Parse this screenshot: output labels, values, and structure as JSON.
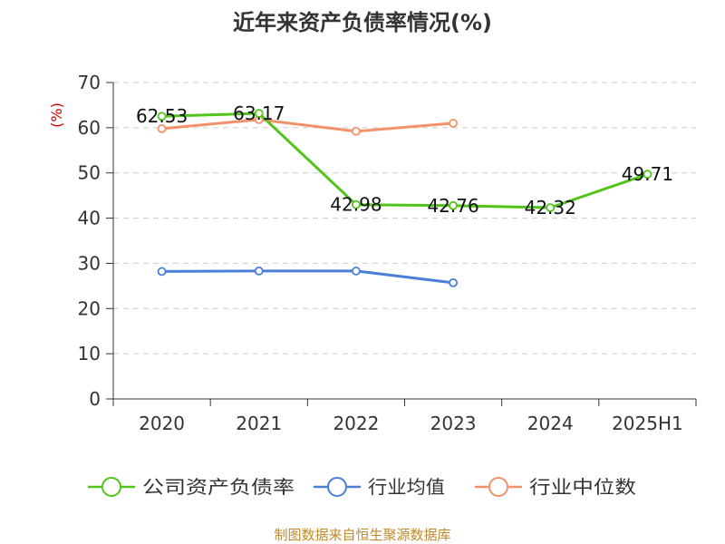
{
  "chart_data": {
    "type": "line",
    "title": "近年来资产负债率情况(%)",
    "ylabel": "(%)",
    "xlabel": "",
    "categories": [
      "2020",
      "2021",
      "2022",
      "2023",
      "2024",
      "2025H1"
    ],
    "ylim": [
      0,
      70
    ],
    "yticks": [
      0,
      10,
      20,
      30,
      40,
      50,
      60,
      70
    ],
    "grid": true,
    "legend_position": "bottom",
    "series": [
      {
        "name": "公司资产负债率",
        "color": "#52c41a",
        "values": [
          62.53,
          63.17,
          42.98,
          42.76,
          42.32,
          49.71
        ],
        "labels": [
          "62.53",
          "63.17",
          "42.98",
          "42.76",
          "42.32",
          "49.71"
        ]
      },
      {
        "name": "行业均值",
        "color": "#4a7fd8",
        "values": [
          28.2,
          28.3,
          28.3,
          25.7,
          null,
          null
        ]
      },
      {
        "name": "行业中位数",
        "color": "#f4916a",
        "values": [
          59.8,
          61.8,
          59.2,
          61.0,
          null,
          null
        ]
      }
    ]
  },
  "source": "制图数据来自恒生聚源数据库"
}
